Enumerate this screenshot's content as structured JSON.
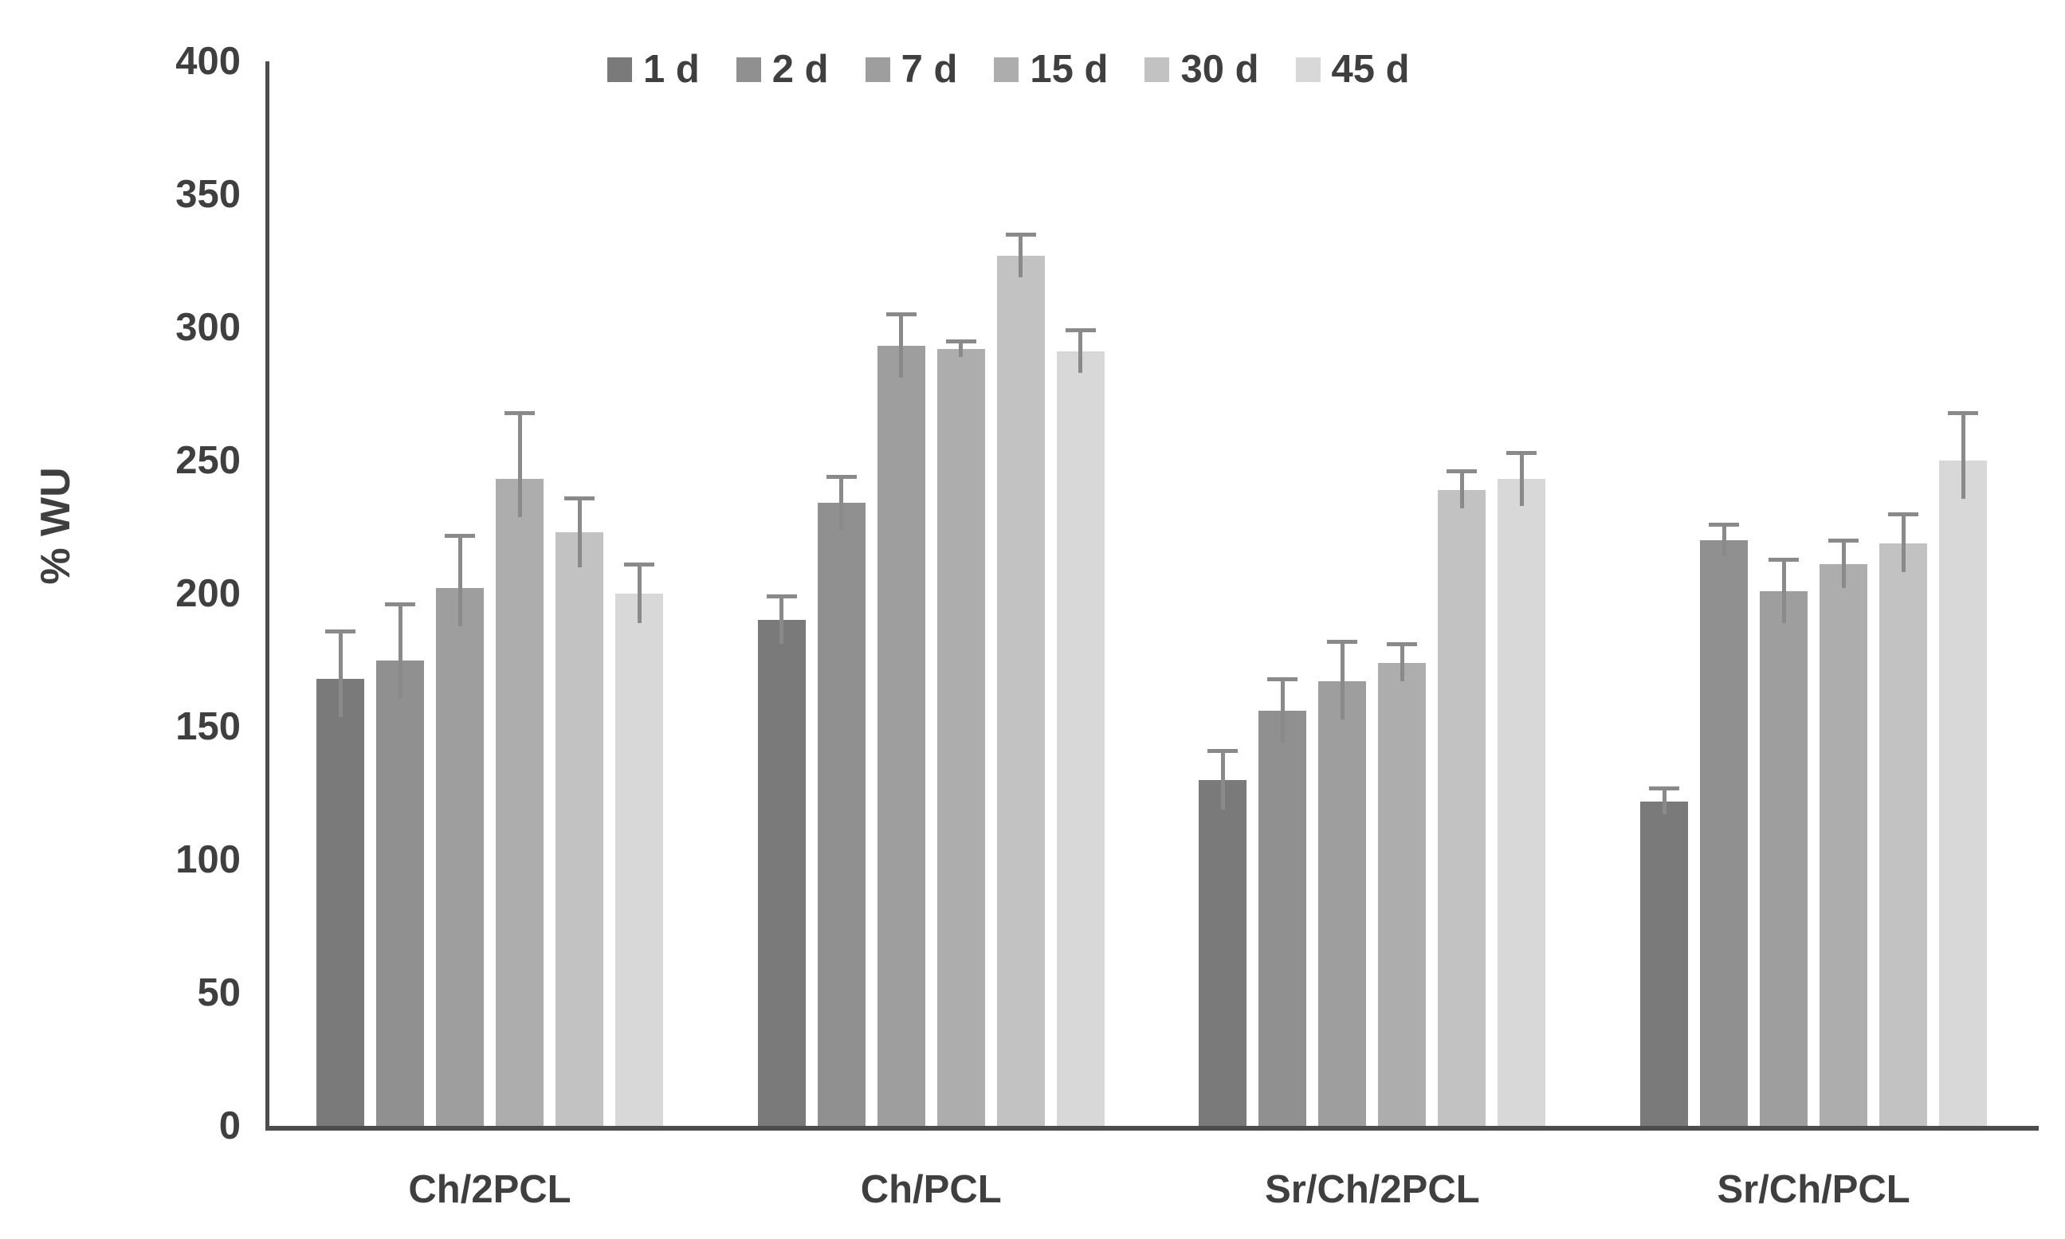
{
  "chart_data": {
    "type": "bar",
    "title": "",
    "xlabel": "",
    "ylabel": "% WU",
    "ylim": [
      0,
      400
    ],
    "yticks": [
      0,
      50,
      100,
      150,
      200,
      250,
      300,
      350,
      400
    ],
    "grid": false,
    "legend_position": "top-center",
    "categories": [
      "Ch/2PCL",
      "Ch/PCL",
      "Sr/Ch/2PCL",
      "Sr/Ch/PCL"
    ],
    "series": [
      {
        "name": "1 d",
        "color": "#7a7a7a",
        "values": [
          168,
          190,
          130,
          122
        ],
        "errors": [
          18,
          9,
          11,
          5
        ]
      },
      {
        "name": "2 d",
        "color": "#909090",
        "values": [
          175,
          234,
          156,
          220
        ],
        "errors": [
          21,
          10,
          12,
          6
        ]
      },
      {
        "name": "7 d",
        "color": "#9e9e9e",
        "values": [
          202,
          293,
          167,
          201
        ],
        "errors": [
          20,
          12,
          15,
          12
        ]
      },
      {
        "name": "15 d",
        "color": "#adadad",
        "values": [
          243,
          292,
          174,
          211
        ],
        "errors": [
          25,
          3,
          7,
          9
        ]
      },
      {
        "name": "30 d",
        "color": "#c2c2c2",
        "values": [
          223,
          327,
          239,
          219
        ],
        "errors": [
          13,
          8,
          7,
          11
        ]
      },
      {
        "name": "45 d",
        "color": "#d8d8d8",
        "values": [
          200,
          291,
          243,
          250
        ],
        "errors": [
          11,
          8,
          10,
          18
        ]
      }
    ],
    "colors": {
      "axis": "#4d4d4d",
      "text": "#3f3f3f",
      "error_bar": "#8a8a8a",
      "background": "#ffffff"
    }
  }
}
